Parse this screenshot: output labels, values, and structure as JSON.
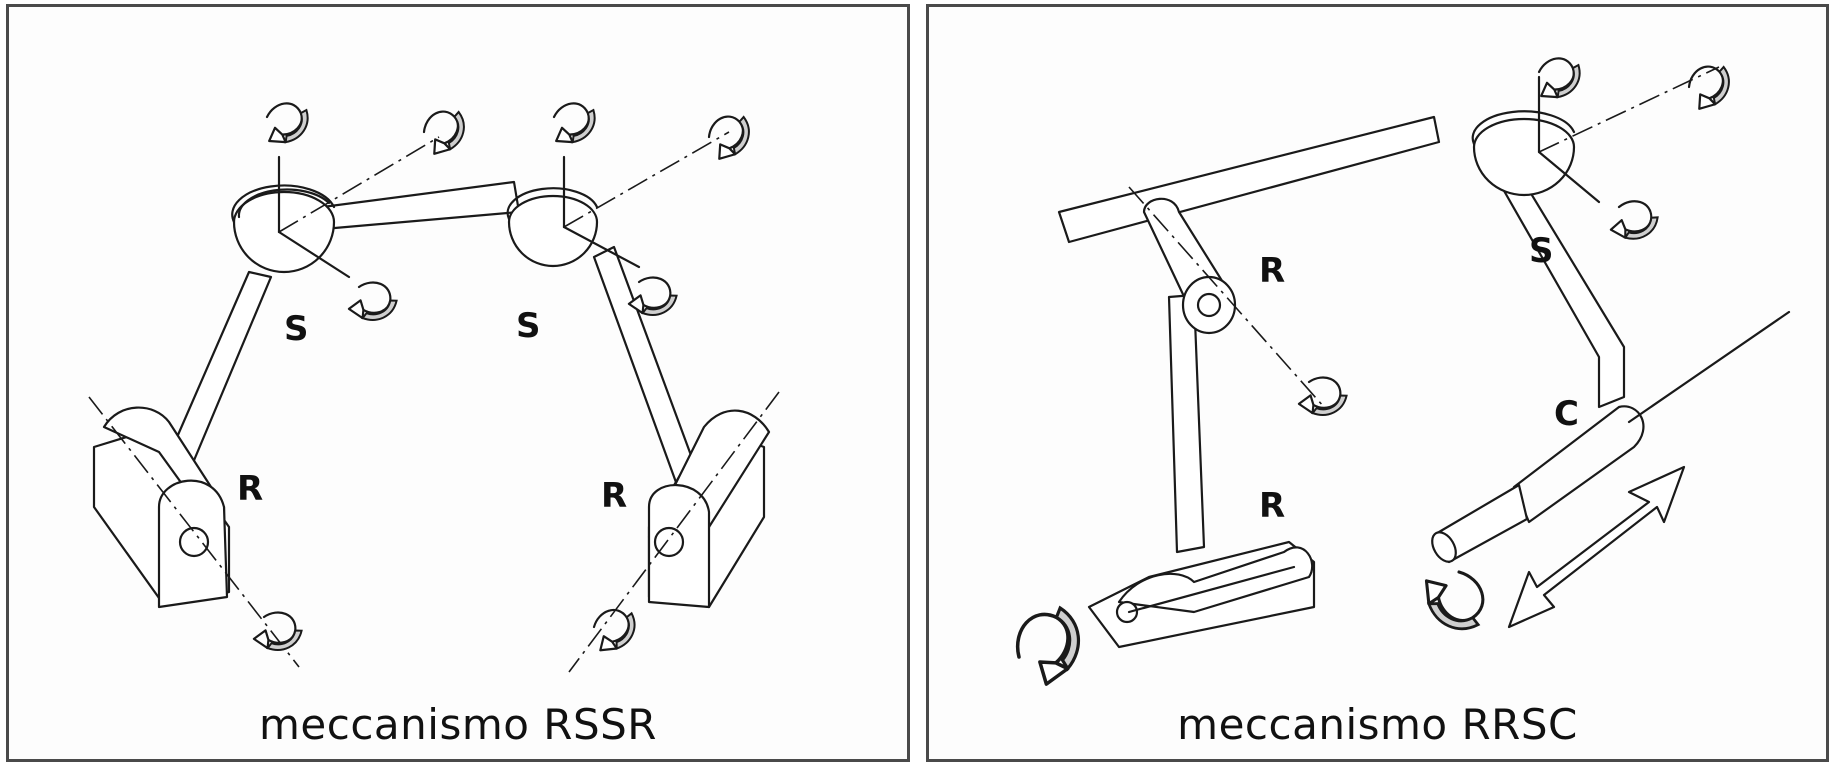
{
  "panels": [
    {
      "caption": "meccanismo RSSR",
      "joints": [
        "S",
        "S",
        "R",
        "R"
      ]
    },
    {
      "caption": "meccanismo RRSC",
      "joints": [
        "R",
        "S",
        "C",
        "R"
      ]
    }
  ]
}
